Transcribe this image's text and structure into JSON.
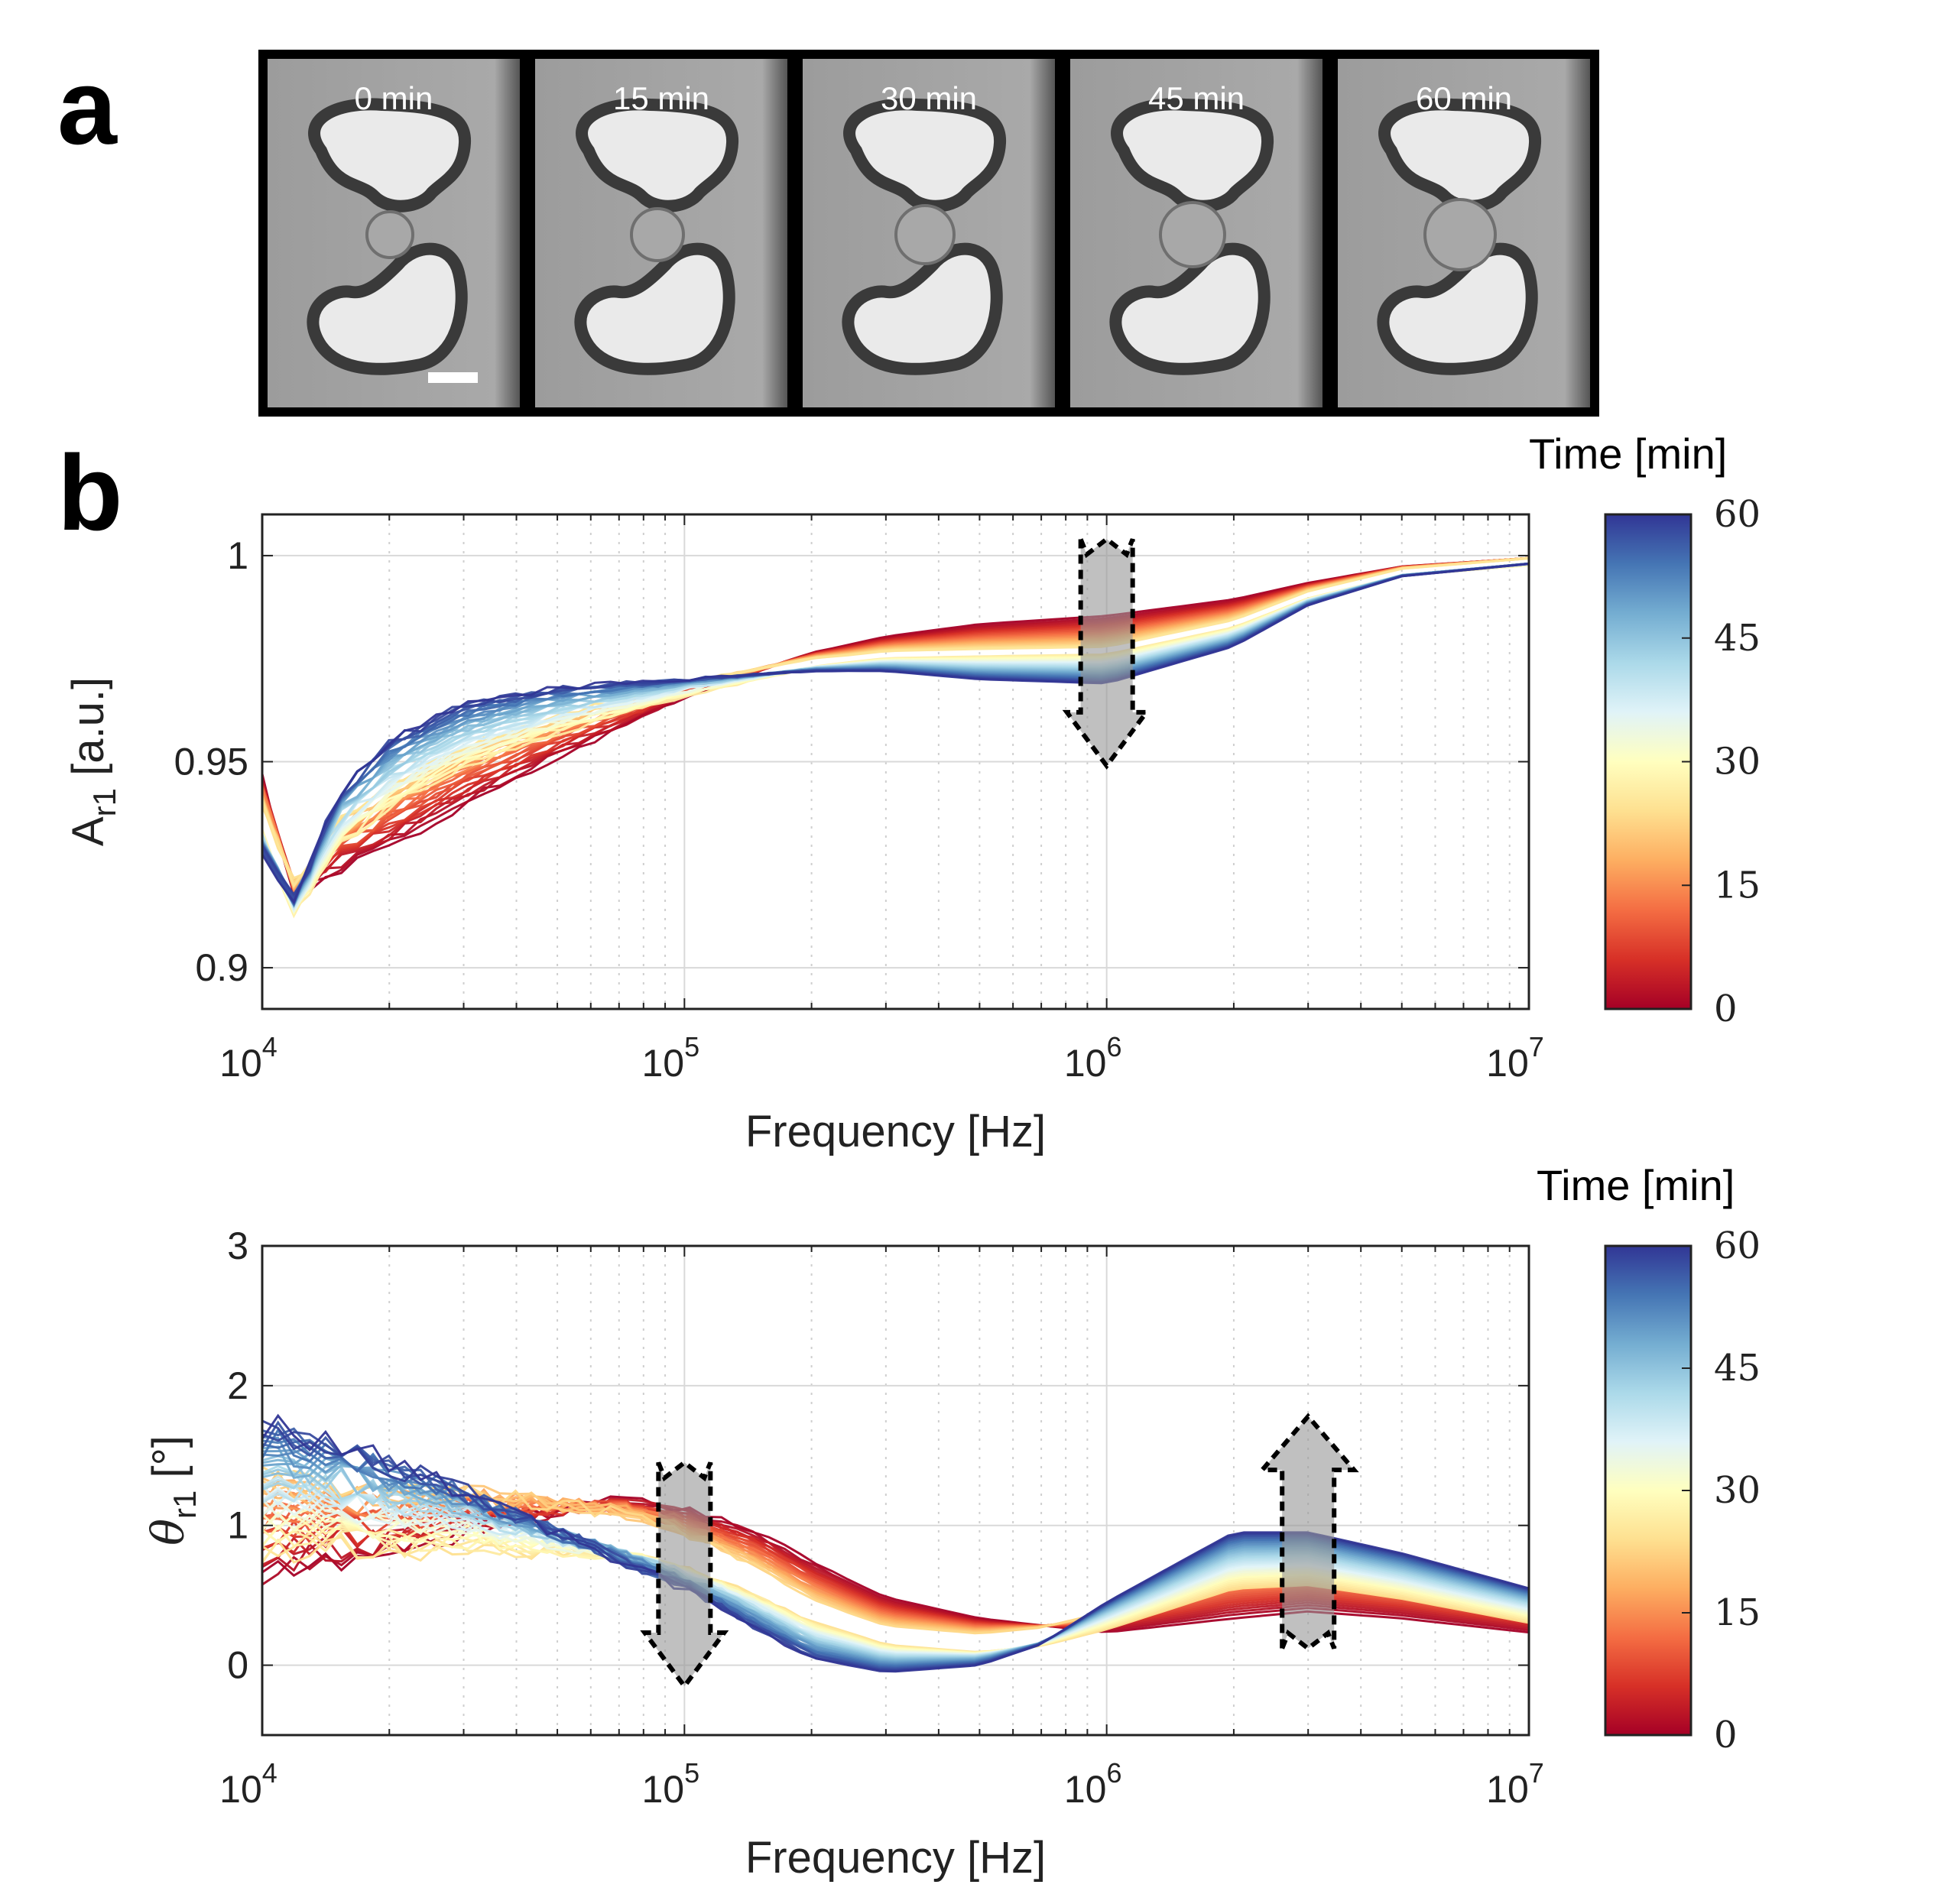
{
  "panels": {
    "a": "a",
    "b": "b"
  },
  "micrographs": {
    "frames": [
      "0 min",
      "15 min",
      "30 min",
      "45 min",
      "60 min"
    ],
    "scale_bar": true
  },
  "colormap": {
    "title": "Time [min]",
    "ticks": [
      "0",
      "15",
      "30",
      "45",
      "60"
    ],
    "stops": [
      "#a50026",
      "#d73027",
      "#f46d43",
      "#fdae61",
      "#fee090",
      "#ffffbf",
      "#e0f3f8",
      "#abd9e9",
      "#74add1",
      "#4575b4",
      "#313695"
    ]
  },
  "chart_data": [
    {
      "type": "line",
      "ylabel_main": "A",
      "ylabel_sub": "r1",
      "ylabel_rest": " [a.u.]",
      "xlabel": "Frequency [Hz]",
      "x_scale": "log",
      "xlim": [
        10000,
        10000000
      ],
      "ylim": [
        0.89,
        1.01
      ],
      "yticks": [
        "0.9",
        "0.95",
        "1"
      ],
      "ytick_values": [
        0.9,
        0.95,
        1.0
      ],
      "xticks": [
        {
          "base": "10",
          "exp": "4"
        },
        {
          "base": "10",
          "exp": "5"
        },
        {
          "base": "10",
          "exp": "6"
        },
        {
          "base": "10",
          "exp": "7"
        }
      ],
      "grid": true,
      "series_count": 61,
      "time_range_min": [
        0,
        60
      ],
      "x_points": [
        10000,
        12000,
        15000,
        20000,
        30000,
        50000,
        100000,
        200000,
        300000,
        500000,
        1000000,
        2000000,
        3000000,
        5000000,
        10000000
      ],
      "curve_t0": [
        0.944,
        0.916,
        0.922,
        0.928,
        0.938,
        0.95,
        0.965,
        0.976,
        0.98,
        0.983,
        0.985,
        0.989,
        0.993,
        0.997,
        0.999
      ],
      "curve_t60": [
        0.928,
        0.916,
        0.942,
        0.955,
        0.964,
        0.968,
        0.97,
        0.972,
        0.972,
        0.97,
        0.969,
        0.978,
        0.988,
        0.995,
        0.998
      ],
      "curve_t0_noise": 0.006,
      "arrows": [
        {
          "x": 1000000,
          "y_from": 1.004,
          "y_to": 0.949,
          "direction": "down"
        }
      ]
    },
    {
      "type": "line",
      "ylabel_main": "θ",
      "ylabel_sub": "r1",
      "ylabel_rest": " [°]",
      "xlabel": "Frequency [Hz]",
      "x_scale": "log",
      "xlim": [
        10000,
        10000000
      ],
      "ylim": [
        -0.5,
        3
      ],
      "yticks": [
        "0",
        "1",
        "2",
        "3"
      ],
      "ytick_values": [
        0,
        1,
        2,
        3
      ],
      "xticks": [
        {
          "base": "10",
          "exp": "4"
        },
        {
          "base": "10",
          "exp": "5"
        },
        {
          "base": "10",
          "exp": "6"
        },
        {
          "base": "10",
          "exp": "7"
        }
      ],
      "grid": true,
      "series_count": 61,
      "time_range_min": [
        0,
        60
      ],
      "x_points": [
        10000,
        12000,
        15000,
        20000,
        30000,
        50000,
        70000,
        100000,
        150000,
        200000,
        300000,
        500000,
        700000,
        1000000,
        2000000,
        3000000,
        5000000,
        10000000
      ],
      "curve_t0": [
        0.45,
        0.55,
        0.6,
        0.65,
        0.85,
        1.0,
        1.1,
        1.05,
        0.9,
        0.7,
        0.45,
        0.3,
        0.25,
        0.2,
        0.3,
        0.35,
        0.3,
        0.2
      ],
      "curve_t60": [
        1.7,
        1.65,
        1.6,
        1.45,
        1.25,
        0.95,
        0.75,
        0.55,
        0.25,
        0.05,
        -0.05,
        0.0,
        0.15,
        0.45,
        0.95,
        0.95,
        0.8,
        0.55
      ],
      "curve_t0_noise": 0.45,
      "arrows": [
        {
          "x": 100000,
          "y_from": 1.45,
          "y_to": -0.15,
          "direction": "down"
        },
        {
          "x": 3000000,
          "y_from": 0.12,
          "y_to": 1.78,
          "direction": "up"
        }
      ]
    }
  ]
}
